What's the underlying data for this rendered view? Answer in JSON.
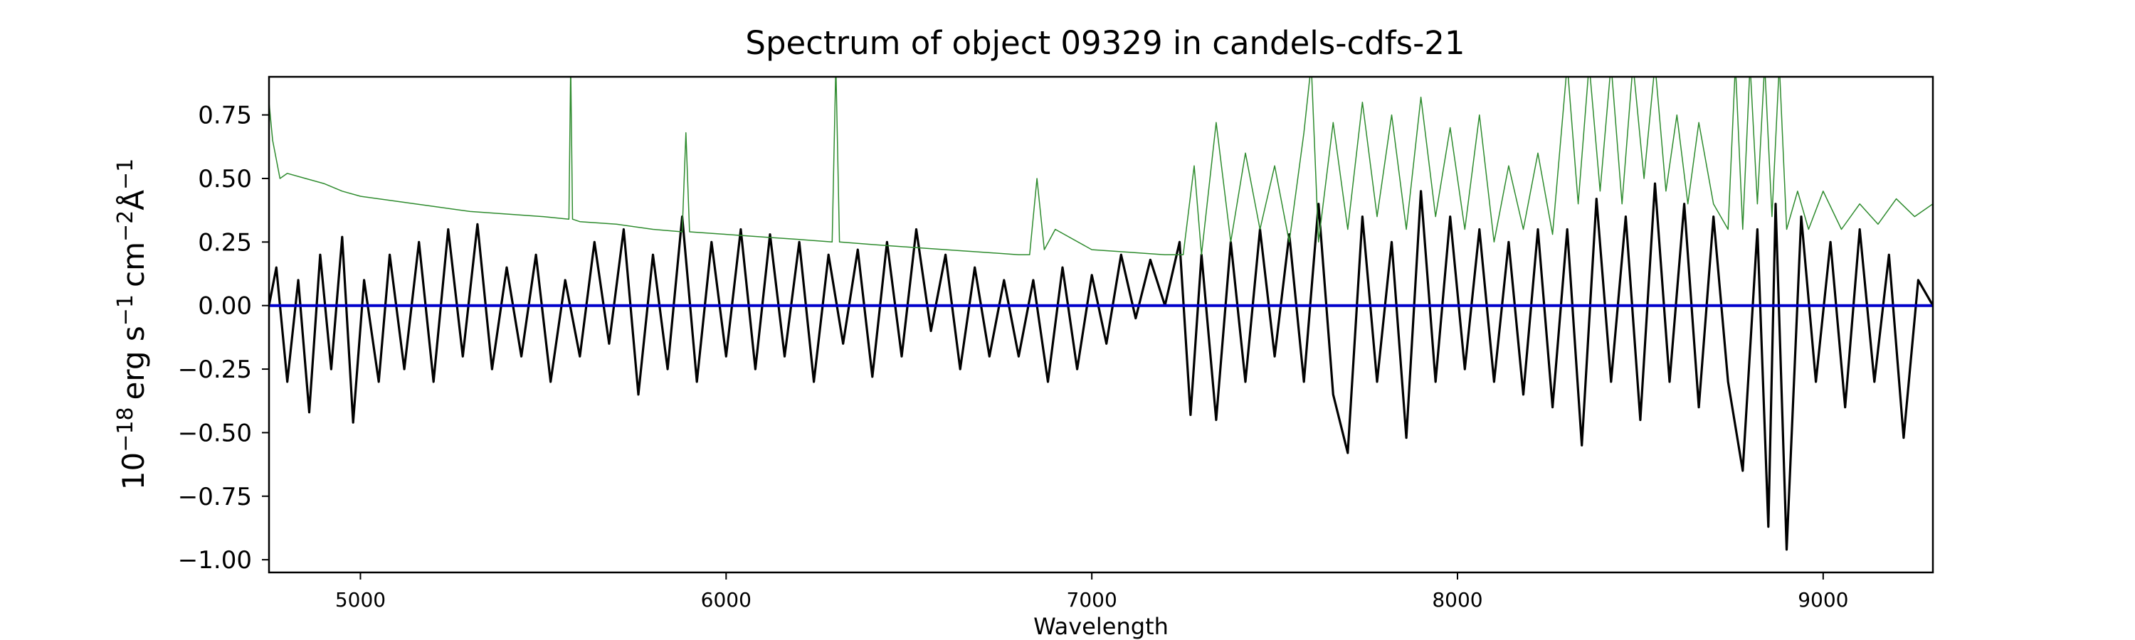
{
  "chart_data": {
    "type": "line",
    "title": "Spectrum of object 09329 in candels-cdfs-21",
    "xlabel": "Wavelength",
    "ylabel_base": "10",
    "ylabel_exp": "−18",
    "ylabel_parts": [
      "erg s",
      "−1",
      "cm",
      "−2",
      "Å",
      "−1"
    ],
    "xlim": [
      4750,
      9300
    ],
    "ylim": [
      -1.05,
      0.9
    ],
    "x_ticks": [
      5000,
      6000,
      7000,
      8000,
      9000
    ],
    "x_tick_labels": [
      "5000",
      "6000",
      "7000",
      "8000",
      "9000"
    ],
    "y_ticks": [
      0.75,
      0.5,
      0.25,
      0.0,
      -0.25,
      -0.5,
      -0.75,
      -1.0
    ],
    "y_tick_labels": [
      "0.75",
      "0.50",
      "0.25",
      "0.00",
      "−0.25",
      "−0.50",
      "−0.75",
      "−1.00"
    ],
    "grid": false,
    "legend": false,
    "series": [
      {
        "color": "#000000",
        "style": "flux",
        "x": [
          4750,
          4770,
          4800,
          4830,
          4860,
          4890,
          4920,
          4950,
          4980,
          5010,
          5050,
          5080,
          5120,
          5160,
          5200,
          5240,
          5280,
          5320,
          5360,
          5400,
          5440,
          5480,
          5520,
          5560,
          5600,
          5640,
          5680,
          5720,
          5760,
          5800,
          5840,
          5880,
          5920,
          5960,
          6000,
          6040,
          6080,
          6120,
          6160,
          6200,
          6240,
          6280,
          6320,
          6360,
          6400,
          6440,
          6480,
          6520,
          6560,
          6600,
          6640,
          6680,
          6720,
          6760,
          6800,
          6840,
          6880,
          6920,
          6960,
          7000,
          7040,
          7080,
          7120,
          7160,
          7200,
          7240,
          7270,
          7300,
          7340,
          7380,
          7420,
          7460,
          7500,
          7540,
          7580,
          7620,
          7660,
          7700,
          7740,
          7780,
          7820,
          7860,
          7900,
          7940,
          7980,
          8020,
          8060,
          8100,
          8140,
          8180,
          8220,
          8260,
          8300,
          8340,
          8380,
          8420,
          8460,
          8500,
          8540,
          8580,
          8620,
          8660,
          8700,
          8740,
          8780,
          8820,
          8850,
          8870,
          8900,
          8940,
          8980,
          9020,
          9060,
          9100,
          9140,
          9180,
          9220,
          9260,
          9300
        ],
        "y": [
          0.0,
          0.15,
          -0.3,
          0.1,
          -0.42,
          0.2,
          -0.25,
          0.27,
          -0.46,
          0.1,
          -0.3,
          0.2,
          -0.25,
          0.25,
          -0.3,
          0.3,
          -0.2,
          0.32,
          -0.25,
          0.15,
          -0.2,
          0.2,
          -0.3,
          0.1,
          -0.2,
          0.25,
          -0.15,
          0.3,
          -0.35,
          0.2,
          -0.25,
          0.35,
          -0.3,
          0.25,
          -0.2,
          0.3,
          -0.25,
          0.28,
          -0.2,
          0.25,
          -0.3,
          0.2,
          -0.15,
          0.22,
          -0.28,
          0.25,
          -0.2,
          0.3,
          -0.1,
          0.2,
          -0.25,
          0.15,
          -0.2,
          0.1,
          -0.2,
          0.1,
          -0.3,
          0.15,
          -0.25,
          0.12,
          -0.15,
          0.2,
          -0.05,
          0.18,
          0.0,
          0.25,
          -0.43,
          0.2,
          -0.45,
          0.25,
          -0.3,
          0.3,
          -0.2,
          0.28,
          -0.3,
          0.4,
          -0.35,
          -0.58,
          0.35,
          -0.3,
          0.25,
          -0.52,
          0.45,
          -0.3,
          0.35,
          -0.25,
          0.3,
          -0.3,
          0.25,
          -0.35,
          0.3,
          -0.4,
          0.3,
          -0.55,
          0.42,
          -0.3,
          0.35,
          -0.45,
          0.48,
          -0.3,
          0.4,
          -0.4,
          0.35,
          -0.3,
          -0.65,
          0.3,
          -0.87,
          0.4,
          -0.96,
          0.35,
          -0.3,
          0.25,
          -0.4,
          0.3,
          -0.3,
          0.2,
          -0.52,
          0.1,
          0.0
        ]
      },
      {
        "color": "#2e8b2e",
        "style": "sky",
        "x": [
          4750,
          4760,
          4780,
          4800,
          4850,
          4900,
          4950,
          5000,
          5100,
          5200,
          5300,
          5400,
          5500,
          5570,
          5575,
          5580,
          5600,
          5700,
          5800,
          5880,
          5890,
          5900,
          6000,
          6100,
          6200,
          6290,
          6300,
          6310,
          6400,
          6500,
          6600,
          6700,
          6800,
          6830,
          6850,
          6870,
          6900,
          7000,
          7100,
          7200,
          7250,
          7280,
          7300,
          7340,
          7380,
          7420,
          7460,
          7500,
          7540,
          7580,
          7600,
          7620,
          7660,
          7700,
          7740,
          7780,
          7820,
          7860,
          7900,
          7940,
          7980,
          8020,
          8060,
          8100,
          8140,
          8180,
          8220,
          8260,
          8300,
          8330,
          8360,
          8390,
          8420,
          8450,
          8480,
          8510,
          8540,
          8570,
          8600,
          8630,
          8660,
          8700,
          8740,
          8760,
          8780,
          8800,
          8820,
          8840,
          8860,
          8880,
          8900,
          8930,
          8960,
          9000,
          9050,
          9100,
          9150,
          9200,
          9250,
          9300
        ],
        "y": [
          0.8,
          0.65,
          0.5,
          0.52,
          0.5,
          0.48,
          0.45,
          0.43,
          0.41,
          0.39,
          0.37,
          0.36,
          0.35,
          0.34,
          0.95,
          0.34,
          0.33,
          0.32,
          0.3,
          0.29,
          0.68,
          0.29,
          0.28,
          0.27,
          0.26,
          0.25,
          0.95,
          0.25,
          0.24,
          0.23,
          0.22,
          0.21,
          0.2,
          0.2,
          0.5,
          0.22,
          0.3,
          0.22,
          0.21,
          0.2,
          0.2,
          0.55,
          0.2,
          0.72,
          0.25,
          0.6,
          0.3,
          0.55,
          0.25,
          0.68,
          0.95,
          0.25,
          0.72,
          0.3,
          0.8,
          0.35,
          0.75,
          0.3,
          0.82,
          0.35,
          0.7,
          0.3,
          0.75,
          0.25,
          0.55,
          0.3,
          0.6,
          0.28,
          0.95,
          0.4,
          0.95,
          0.45,
          0.95,
          0.4,
          0.95,
          0.5,
          0.95,
          0.45,
          0.75,
          0.4,
          0.72,
          0.4,
          0.3,
          0.95,
          0.3,
          0.95,
          0.4,
          0.95,
          0.35,
          0.95,
          0.3,
          0.45,
          0.3,
          0.45,
          0.3,
          0.4,
          0.32,
          0.42,
          0.35,
          0.4
        ]
      },
      {
        "color": "#0000cc",
        "style": "model",
        "x": [
          4750,
          9300
        ],
        "y": [
          0.0,
          0.0
        ]
      }
    ]
  }
}
